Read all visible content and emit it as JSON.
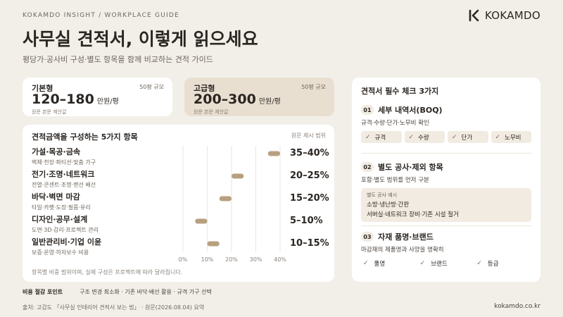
{
  "header": {
    "kicker": "KOKAMDO INSIGHT  /  WORKPLACE GUIDE",
    "title": "사무실 견적서, 이렇게 읽으세요",
    "subtitle": "평당가·공사비 구성·별도 항목을 함께 비교하는 견적 가이드",
    "logo_text": "KOKAMDO",
    "logo_icon": "kokamdo-k-icon"
  },
  "price_cards": [
    {
      "name": "기본형",
      "scale": "50평 규모",
      "range": "120–180",
      "unit": "만원/평",
      "note": "원문 본문 제안값"
    },
    {
      "name": "고급형",
      "scale": "50평 규모",
      "range": "200–300",
      "unit": "만원/평",
      "note": "원문 본문 제안값"
    }
  ],
  "chart_data": {
    "type": "range-bar",
    "title": "견적금액을 구성하는 5가지 항목",
    "note": "원문 제시 범위",
    "categories": [
      {
        "name": "가설·목공·금속",
        "sub": "벽체·천장·파티션·맞춤 가구",
        "range": [
          35,
          40
        ],
        "label": "35–40%"
      },
      {
        "name": "전기·조명·네트워크",
        "sub": "전열·콘센트·조명·랜선 배선",
        "range": [
          20,
          25
        ],
        "label": "20–25%"
      },
      {
        "name": "바닥·벽면 마감",
        "sub": "타일·카펫·도장·필름·유리",
        "range": [
          15,
          20
        ],
        "label": "15–20%"
      },
      {
        "name": "디자인·공무·설계",
        "sub": "도면·3D·감리·프로젝트 관리",
        "range": [
          5,
          10
        ],
        "label": "5–10%"
      },
      {
        "name": "일반관리비·기업 이윤",
        "sub": "보증·운영·하자보수 비용",
        "range": [
          10,
          15
        ],
        "label": "10–15%"
      }
    ],
    "xticks": [
      "0%",
      "10%",
      "20%",
      "30%",
      "40%"
    ],
    "xlim": [
      0,
      40
    ],
    "footnote": "항목별 비중 범위이며, 실제 구성은 프로젝트에 따라 달라집니다.",
    "bar_color": "#b8a07e"
  },
  "tips": {
    "title": "비용 절감 포인트",
    "text": "구조 변경 최소화  ·  기존 바닥·배선 활용  ·  규격 가구 선택"
  },
  "checklist": {
    "title": "견적서 필수 체크 3가지",
    "sections": [
      {
        "num": "01",
        "title": "세부 내역서(BOQ)",
        "desc": "규격·수량·단가·노무비 확인",
        "chips": [
          "규격",
          "수량",
          "단가",
          "노무비"
        ]
      },
      {
        "num": "02",
        "title": "별도 공사·제외 항목",
        "desc": "포함·별도 범위를 먼저 구분",
        "example_label": "별도 공사 예시",
        "example_lines": [
          "소방·냉난방·간판",
          "서버실·네트워크 장비·기존 시설 철거"
        ]
      },
      {
        "num": "03",
        "title": "자재 품명·브랜드",
        "desc": "마감재의 제품명과 사양을 명확히",
        "items": [
          "품명",
          "브랜드",
          "등급"
        ]
      }
    ]
  },
  "footer": {
    "source": "출처: 고감도 「사무실 인테리어 견적서 보는 법」 · 원문(2026.08.04) 요약",
    "site": "kokamdo.co.kr"
  },
  "colors": {
    "background": "#f2efe9",
    "accent": "#b8a07e",
    "premium_card": "#e9dfd0",
    "chip": "#f1ebe1"
  }
}
